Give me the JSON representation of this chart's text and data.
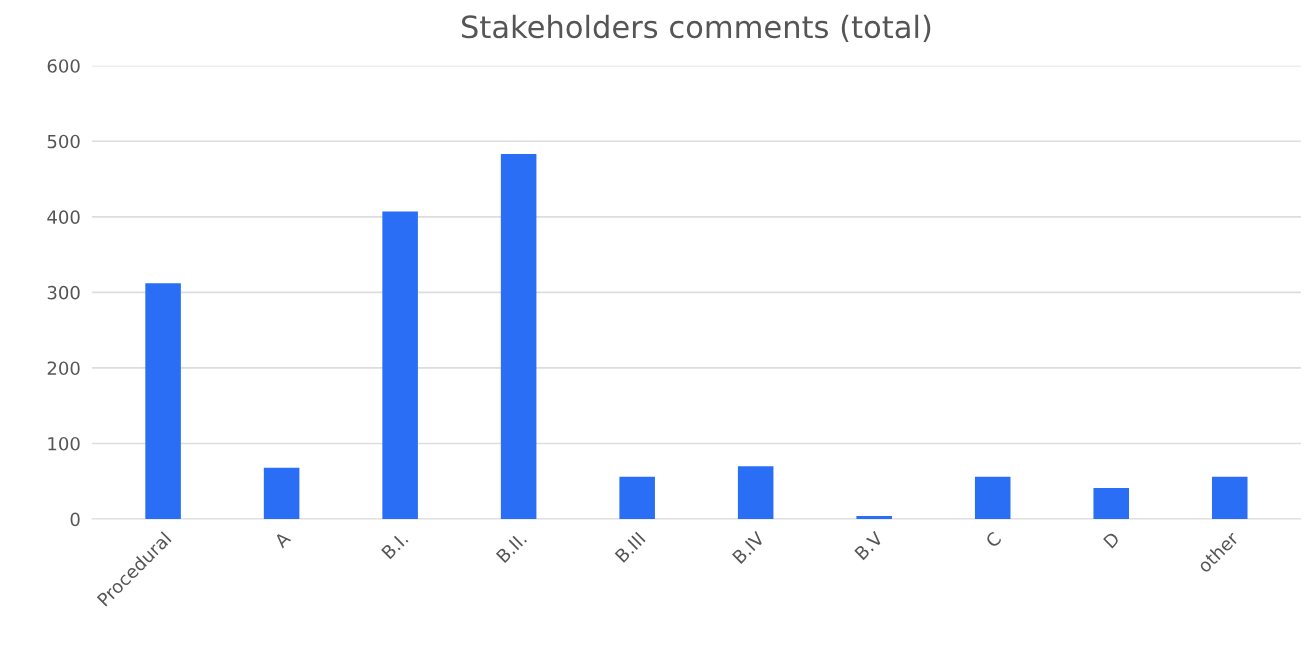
{
  "chart_data": {
    "type": "bar",
    "title": "Stakeholders comments (total)",
    "categories": [
      "Procedural",
      "A",
      "B.I.",
      "B.II.",
      "B.III",
      "B.IV",
      "B.V",
      "C",
      "D",
      "other"
    ],
    "values": [
      312,
      68,
      407,
      483,
      56,
      70,
      4,
      56,
      41,
      56
    ],
    "color": "#2a6ef5",
    "ylim": [
      0,
      600
    ],
    "yticks": [
      0,
      100,
      200,
      300,
      400,
      500,
      600
    ],
    "grid": "y"
  }
}
